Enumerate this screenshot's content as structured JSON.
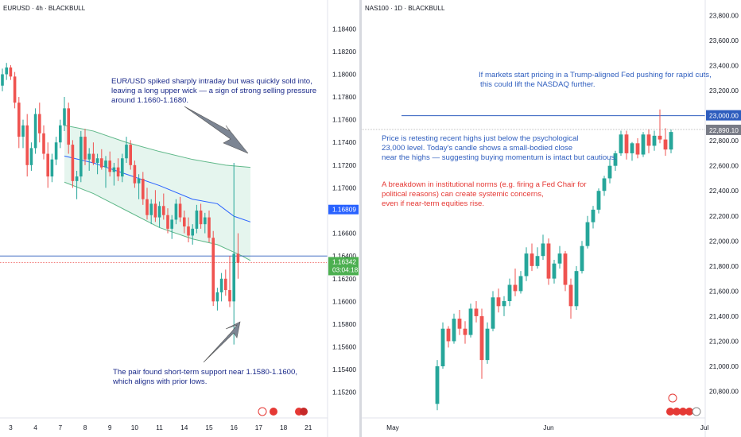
{
  "left": {
    "symbol": "EURUSD · 4h · BLACKBULL",
    "colors": {
      "up": "#26a69a",
      "down": "#ef5350",
      "band": "#dff2ea",
      "bandEdge": "#5fb889",
      "mid": "#2962ff",
      "price": "#4caf50",
      "hline": "#2e5dbe",
      "arrow": "#7c8593"
    },
    "annotations": {
      "top": [
        "EUR/USD spiked sharply intraday but was quickly sold into,",
        "leaving a long upper wick — a sign of strong selling pressure",
        "around 1.1660-1.1680."
      ],
      "bottom": [
        "The pair found short-term support near 1.1580-1.1600,",
        "which aligns with prior lows."
      ]
    },
    "price_labels": {
      "blue": "1.16809",
      "green": "1.16342",
      "countdown": "03:04:18"
    }
  },
  "right": {
    "symbol": "NAS100 · 1D · BLACKBULL",
    "colors": {
      "up": "#26a69a",
      "down": "#ef5350",
      "hline": "#2e5dbe",
      "price": "#9e9e9e"
    },
    "annotations": {
      "top": [
        "If markets start pricing in a Trump-aligned Fed pushing for rapid cuts,",
        "this could lift the NASDAQ further."
      ],
      "mid": [
        "Price is retesting recent highs just below the psychological",
        "23,000 level. Today's candle shows a small-bodied close",
        "near the highs — suggesting buying momentum is intact but cautious."
      ],
      "red": [
        "A breakdown in institutional norms (e.g. firing a Fed Chair for",
        "political reasons) can create systemic concerns,",
        "even if near-term equities rise."
      ]
    },
    "price_labels": {
      "blue": "23,000.00",
      "gray": "22,890.10"
    }
  },
  "chart_data": [
    {
      "type": "candlestick",
      "title": "EURUSD · 4h · BLACKBULL",
      "yticks": [
        "1.18400",
        "1.18200",
        "1.18000",
        "1.17800",
        "1.17600",
        "1.17400",
        "1.17200",
        "1.17000",
        "1.16800",
        "1.16600",
        "1.16400",
        "1.16200",
        "1.16000",
        "1.15800",
        "1.15600",
        "1.15400",
        "1.15200"
      ],
      "ylim": [
        1.151,
        1.185
      ],
      "xticks": [
        {
          "label": "3",
          "i": 2
        },
        {
          "label": "4",
          "i": 8
        },
        {
          "label": "7",
          "i": 14
        },
        {
          "label": "8",
          "i": 20
        },
        {
          "label": "9",
          "i": 26
        },
        {
          "label": "10",
          "i": 32
        },
        {
          "label": "11",
          "i": 38
        },
        {
          "label": "14",
          "i": 44
        },
        {
          "label": "15",
          "i": 50
        },
        {
          "label": "16",
          "i": 56
        },
        {
          "label": "17",
          "i": 62
        },
        {
          "label": "18",
          "i": 68
        },
        {
          "label": "21",
          "i": 74
        }
      ],
      "ohlc": [
        [
          1.179,
          1.1805,
          1.1785,
          1.18
        ],
        [
          1.18,
          1.181,
          1.1795,
          1.1806
        ],
        [
          1.1806,
          1.1808,
          1.1795,
          1.1798
        ],
        [
          1.1798,
          1.1802,
          1.177,
          1.1775
        ],
        [
          1.1775,
          1.178,
          1.1735,
          1.1745
        ],
        [
          1.1745,
          1.176,
          1.1735,
          1.1755
        ],
        [
          1.1755,
          1.1765,
          1.171,
          1.172
        ],
        [
          1.172,
          1.174,
          1.1715,
          1.1735
        ],
        [
          1.1735,
          1.177,
          1.173,
          1.1765
        ],
        [
          1.1765,
          1.1775,
          1.174,
          1.1748
        ],
        [
          1.1748,
          1.1755,
          1.1725,
          1.173
        ],
        [
          1.173,
          1.174,
          1.17,
          1.171
        ],
        [
          1.171,
          1.173,
          1.1705,
          1.1725
        ],
        [
          1.1725,
          1.1745,
          1.172,
          1.174
        ],
        [
          1.174,
          1.176,
          1.1735,
          1.1755
        ],
        [
          1.1755,
          1.178,
          1.175,
          1.177
        ],
        [
          1.177,
          1.1775,
          1.173,
          1.1738
        ],
        [
          1.1738,
          1.1742,
          1.17,
          1.1706
        ],
        [
          1.1706,
          1.1715,
          1.169,
          1.171
        ],
        [
          1.171,
          1.175,
          1.1705,
          1.1745
        ],
        [
          1.1745,
          1.1752,
          1.172,
          1.1725
        ],
        [
          1.1725,
          1.1735,
          1.1715,
          1.173
        ],
        [
          1.173,
          1.174,
          1.172,
          1.1722
        ],
        [
          1.1722,
          1.173,
          1.1712,
          1.1726
        ],
        [
          1.1726,
          1.1734,
          1.1716,
          1.1718
        ],
        [
          1.1718,
          1.1728,
          1.17,
          1.1724
        ],
        [
          1.1724,
          1.1732,
          1.171,
          1.1714
        ],
        [
          1.1714,
          1.1722,
          1.1702,
          1.1718
        ],
        [
          1.1718,
          1.1726,
          1.1706,
          1.171
        ],
        [
          1.171,
          1.173,
          1.1705,
          1.1726
        ],
        [
          1.1726,
          1.1745,
          1.1722,
          1.1738
        ],
        [
          1.1738,
          1.1742,
          1.1716,
          1.172
        ],
        [
          1.172,
          1.1724,
          1.17,
          1.1704
        ],
        [
          1.1704,
          1.1712,
          1.169,
          1.1708
        ],
        [
          1.1708,
          1.1714,
          1.1685,
          1.169
        ],
        [
          1.169,
          1.17,
          1.1672,
          1.1676
        ],
        [
          1.1676,
          1.169,
          1.1668,
          1.1686
        ],
        [
          1.1686,
          1.1698,
          1.167,
          1.1674
        ],
        [
          1.1674,
          1.1688,
          1.1665,
          1.1684
        ],
        [
          1.1684,
          1.1695,
          1.1672,
          1.1676
        ],
        [
          1.1676,
          1.1682,
          1.166,
          1.1664
        ],
        [
          1.1664,
          1.1676,
          1.1655,
          1.1672
        ],
        [
          1.1672,
          1.169,
          1.1668,
          1.1686
        ],
        [
          1.1686,
          1.1692,
          1.167,
          1.1674
        ],
        [
          1.1674,
          1.168,
          1.166,
          1.1666
        ],
        [
          1.1666,
          1.1674,
          1.1652,
          1.1658
        ],
        [
          1.1658,
          1.1668,
          1.165,
          1.1664
        ],
        [
          1.1664,
          1.1685,
          1.166,
          1.168
        ],
        [
          1.168,
          1.1686,
          1.1664,
          1.1668
        ],
        [
          1.1668,
          1.1678,
          1.166,
          1.1674
        ],
        [
          1.1674,
          1.168,
          1.1652,
          1.1656
        ],
        [
          1.1656,
          1.1662,
          1.1596,
          1.16
        ],
        [
          1.16,
          1.1612,
          1.1592,
          1.1608
        ],
        [
          1.1608,
          1.1625,
          1.16,
          1.162
        ],
        [
          1.162,
          1.1628,
          1.1605,
          1.161
        ],
        [
          1.161,
          1.164,
          1.1595,
          1.16
        ],
        [
          1.16,
          1.1722,
          1.1562,
          1.1642
        ],
        [
          1.1642,
          1.166,
          1.162,
          1.1634
        ]
      ],
      "band_upper": [
        [
          15,
          1.1755
        ],
        [
          22,
          1.175
        ],
        [
          30,
          1.174
        ],
        [
          38,
          1.1732
        ],
        [
          46,
          1.1725
        ],
        [
          54,
          1.172
        ],
        [
          60,
          1.1718
        ]
      ],
      "band_middle": [
        [
          15,
          1.1728
        ],
        [
          22,
          1.1722
        ],
        [
          30,
          1.1712
        ],
        [
          38,
          1.1702
        ],
        [
          46,
          1.169
        ],
        [
          52,
          1.1686
        ],
        [
          56,
          1.1675
        ],
        [
          60,
          1.167
        ]
      ],
      "band_lower": [
        [
          15,
          1.1705
        ],
        [
          22,
          1.1695
        ],
        [
          30,
          1.168
        ],
        [
          38,
          1.1665
        ],
        [
          46,
          1.1655
        ],
        [
          52,
          1.165
        ],
        [
          58,
          1.164
        ],
        [
          60,
          1.1636
        ]
      ],
      "hlines": [
        {
          "value": 1.16809,
          "label": "1.16809"
        },
        {
          "value": 1.16342,
          "label": "1.16342"
        }
      ]
    },
    {
      "type": "candlestick",
      "title": "NAS100 · 1D · BLACKBULL",
      "yticks": [
        "23,800.00",
        "23,600.00",
        "23,400.00",
        "23,200.00",
        "23,000.00",
        "22,800.00",
        "22,600.00",
        "22,400.00",
        "22,200.00",
        "22,000.00",
        "21,800.00",
        "21,600.00",
        "21,400.00",
        "21,200.00",
        "21,000.00",
        "20,800.00"
      ],
      "ylim": [
        20740,
        23860
      ],
      "xticks": [
        {
          "label": "May",
          "i": -8
        },
        {
          "label": "Jun",
          "i": 20
        },
        {
          "label": "Jul",
          "i": 48
        }
      ],
      "ohlc": [
        [
          20700,
          21050,
          20650,
          21000
        ],
        [
          21000,
          21350,
          20980,
          21300
        ],
        [
          21300,
          21320,
          21150,
          21200
        ],
        [
          21200,
          21420,
          21180,
          21380
        ],
        [
          21380,
          21450,
          21250,
          21300
        ],
        [
          21300,
          21360,
          21180,
          21250
        ],
        [
          21250,
          21500,
          21230,
          21460
        ],
        [
          21460,
          21520,
          21350,
          21400
        ],
        [
          21400,
          21460,
          20900,
          21050
        ],
        [
          21050,
          21350,
          21020,
          21300
        ],
        [
          21300,
          21600,
          21280,
          21550
        ],
        [
          21550,
          21620,
          21430,
          21480
        ],
        [
          21480,
          21560,
          21400,
          21520
        ],
        [
          21520,
          21700,
          21480,
          21650
        ],
        [
          21650,
          21780,
          21560,
          21600
        ],
        [
          21600,
          21760,
          21580,
          21720
        ],
        [
          21720,
          21950,
          21680,
          21900
        ],
        [
          21900,
          21980,
          21760,
          21800
        ],
        [
          21800,
          21950,
          21780,
          21880
        ],
        [
          21880,
          22050,
          21850,
          21980
        ],
        [
          21980,
          22020,
          21650,
          21700
        ],
        [
          21700,
          21850,
          21660,
          21820
        ],
        [
          21820,
          21960,
          21780,
          21900
        ],
        [
          21900,
          21920,
          21600,
          21650
        ],
        [
          21650,
          21700,
          21380,
          21480
        ],
        [
          21480,
          21800,
          21450,
          21760
        ],
        [
          21760,
          22000,
          21740,
          21960
        ],
        [
          21960,
          22200,
          21940,
          22150
        ],
        [
          22150,
          22280,
          22100,
          22250
        ],
        [
          22250,
          22420,
          22220,
          22400
        ],
        [
          22400,
          22520,
          22360,
          22500
        ],
        [
          22500,
          22650,
          22460,
          22600
        ],
        [
          22600,
          22720,
          22560,
          22700
        ],
        [
          22700,
          22880,
          22680,
          22850
        ],
        [
          22850,
          22880,
          22650,
          22700
        ],
        [
          22700,
          22790,
          22640,
          22780
        ],
        [
          22780,
          22820,
          22660,
          22690
        ],
        [
          22690,
          22870,
          22670,
          22850
        ],
        [
          22850,
          22890,
          22700,
          22760
        ],
        [
          22760,
          22880,
          22720,
          22840
        ],
        [
          22840,
          23050,
          22780,
          22810
        ],
        [
          22810,
          22900,
          22680,
          22730
        ],
        [
          22730,
          22890,
          22700,
          22870
        ]
      ],
      "hlines": [
        {
          "value": 23000,
          "label": "23,000.00"
        },
        {
          "value": 22890.1,
          "label": "22,890.10"
        }
      ]
    }
  ]
}
